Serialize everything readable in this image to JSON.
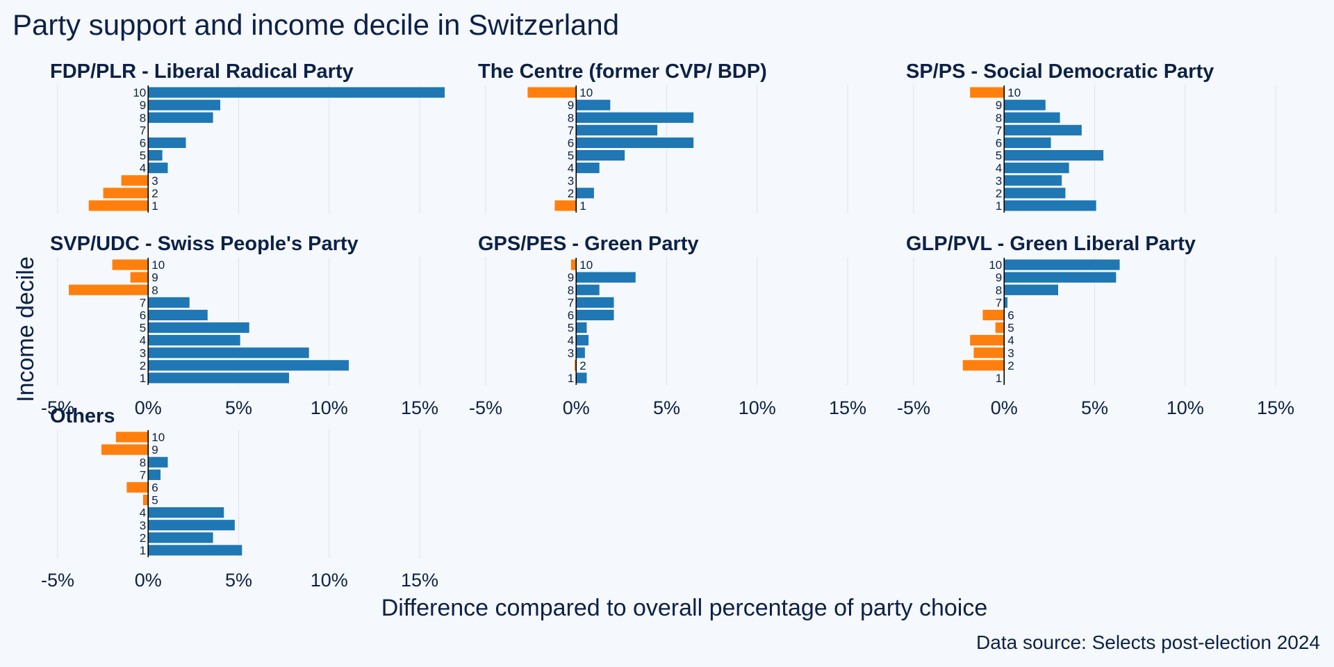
{
  "chart_data": {
    "type": "bar",
    "orientation": "horizontal",
    "title": "Party support and income decile in Switzerland",
    "xlabel": "Difference compared to overall percentage of party choice",
    "ylabel": "Income decile",
    "caption": "Data source: Selects post-election 2024",
    "xlim": [
      -5,
      15
    ],
    "x_ticks": [
      -5,
      0,
      5,
      10,
      15
    ],
    "x_tick_labels": [
      "-5%",
      "0%",
      "5%",
      "10%",
      "15%"
    ],
    "grid": "vertical",
    "colors": {
      "positive": "#1f77b4",
      "negative": "#ff7f0e"
    },
    "categories": [
      "1",
      "2",
      "3",
      "4",
      "5",
      "6",
      "7",
      "8",
      "9",
      "10"
    ],
    "series": [
      {
        "name": "FDP/PLR - Liberal Radical Party",
        "values": [
          -3.3,
          -2.5,
          -1.5,
          1.1,
          0.8,
          2.1,
          0.0,
          3.6,
          4.0,
          16.4
        ]
      },
      {
        "name": "The Centre (former CVP/ BDP)",
        "values": [
          -1.2,
          1.0,
          0.0,
          1.3,
          2.7,
          6.5,
          4.5,
          6.5,
          1.9,
          -2.7
        ]
      },
      {
        "name": "SP/PS - Social Democratic Party",
        "values": [
          5.1,
          3.4,
          3.2,
          3.6,
          5.5,
          2.6,
          4.3,
          3.1,
          2.3,
          -1.9
        ]
      },
      {
        "name": "SVP/UDC - Swiss People's Party",
        "values": [
          7.8,
          11.1,
          8.9,
          5.1,
          5.6,
          3.3,
          2.3,
          -4.4,
          -1.0,
          -2.0
        ]
      },
      {
        "name": "GPS/PES - Green Party",
        "values": [
          0.6,
          -0.1,
          0.5,
          0.7,
          0.6,
          2.1,
          2.1,
          1.3,
          3.3,
          -0.3
        ]
      },
      {
        "name": "GLP/PVL - Green Liberal Party",
        "values": [
          0.0,
          -2.3,
          -1.7,
          -1.9,
          -0.5,
          -1.2,
          0.2,
          3.0,
          6.2,
          6.4
        ]
      },
      {
        "name": "Others",
        "values": [
          5.2,
          3.6,
          4.8,
          4.2,
          -0.3,
          -1.2,
          0.7,
          1.1,
          -2.6,
          -1.8
        ]
      }
    ],
    "axis_label_panels": [
      3,
      4,
      5,
      6
    ]
  }
}
